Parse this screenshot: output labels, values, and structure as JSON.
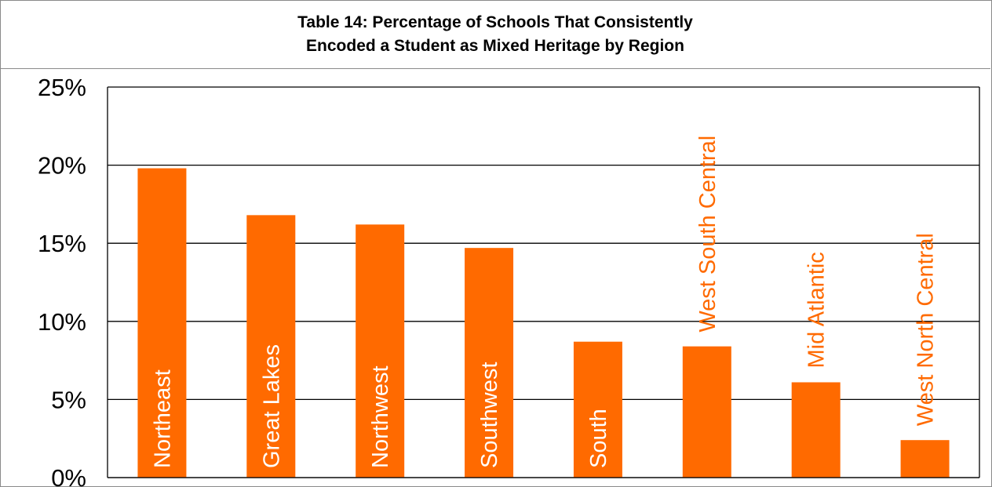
{
  "title": {
    "line1": "Table 14: Percentage of Schools That Consistently",
    "line2": "Encoded a Student as Mixed Heritage by Region"
  },
  "chart_data": {
    "type": "bar",
    "title": "Table 14: Percentage of Schools That Consistently Encoded a Student as Mixed Heritage by Region",
    "xlabel": "",
    "ylabel": "",
    "categories": [
      "Northeast",
      "Great Lakes",
      "Northwest",
      "Southwest",
      "South",
      "West South Central",
      "Mid Atlantic",
      "West North Central"
    ],
    "values": [
      19.8,
      16.8,
      16.2,
      14.7,
      8.7,
      8.4,
      6.1,
      2.4
    ],
    "ylim": [
      0,
      25
    ],
    "yticks": [
      "0%",
      "5%",
      "10%",
      "15%",
      "20%",
      "25%"
    ],
    "grid": true,
    "legend": "none",
    "bar_color": "#ff6a00",
    "label_color_inside": "#ffffff",
    "label_color_outside": "#ff6a00"
  }
}
